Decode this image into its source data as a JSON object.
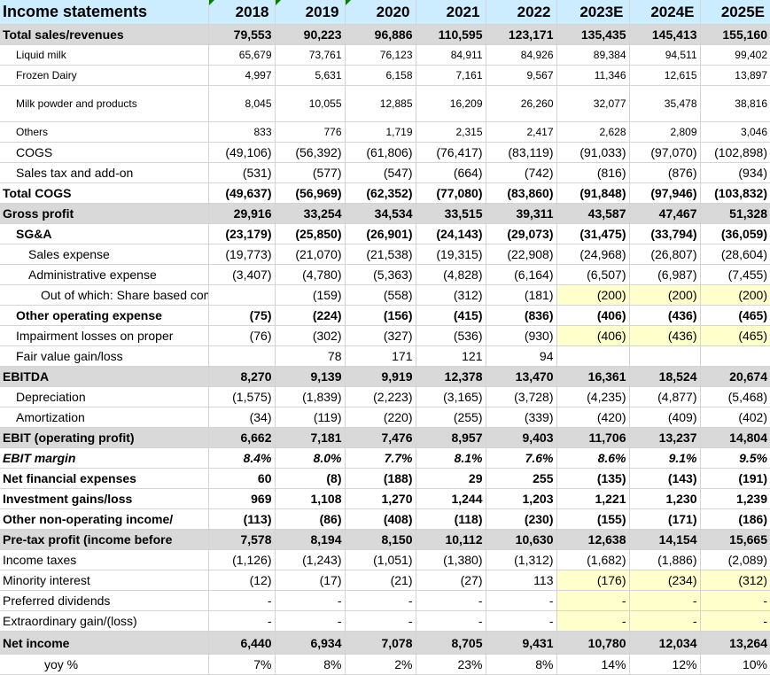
{
  "header": {
    "title": "Income statements",
    "years": [
      "2018",
      "2019",
      "2020",
      "2021",
      "2022",
      "2023E",
      "2024E",
      "2025E"
    ]
  },
  "rows": [
    {
      "label": "Total sales/revenues",
      "values": [
        "79,553",
        "90,223",
        "96,886",
        "110,595",
        "123,171",
        "135,435",
        "145,413",
        "155,160"
      ]
    },
    {
      "label": "Liquid milk",
      "values": [
        "65,679",
        "73,761",
        "76,123",
        "84,911",
        "84,926",
        "89,384",
        "94,511",
        "99,402"
      ]
    },
    {
      "label": "Frozen Dairy",
      "values": [
        "4,997",
        "5,631",
        "6,158",
        "7,161",
        "9,567",
        "11,346",
        "12,615",
        "13,897"
      ]
    },
    {
      "label": "Milk powder and products",
      "values": [
        "8,045",
        "10,055",
        "12,885",
        "16,209",
        "26,260",
        "32,077",
        "35,478",
        "38,816"
      ]
    },
    {
      "label": "Others",
      "values": [
        "833",
        "776",
        "1,719",
        "2,315",
        "2,417",
        "2,628",
        "2,809",
        "3,046"
      ]
    },
    {
      "label": "COGS",
      "values": [
        "(49,106)",
        "(56,392)",
        "(61,806)",
        "(76,417)",
        "(83,119)",
        "(91,033)",
        "(97,070)",
        "(102,898)"
      ]
    },
    {
      "label": "Sales tax and add-on",
      "values": [
        "(531)",
        "(577)",
        "(547)",
        "(664)",
        "(742)",
        "(816)",
        "(876)",
        "(934)"
      ]
    },
    {
      "label": "Total COGS",
      "values": [
        "(49,637)",
        "(56,969)",
        "(62,352)",
        "(77,080)",
        "(83,860)",
        "(91,848)",
        "(97,946)",
        "(103,832)"
      ]
    },
    {
      "label": "Gross profit",
      "values": [
        "29,916",
        "33,254",
        "34,534",
        "33,515",
        "39,311",
        "43,587",
        "47,467",
        "51,328"
      ]
    },
    {
      "label": "SG&A",
      "values": [
        "(23,179)",
        "(25,850)",
        "(26,901)",
        "(24,143)",
        "(29,073)",
        "(31,475)",
        "(33,794)",
        "(36,059)"
      ]
    },
    {
      "label": "Sales expense",
      "values": [
        "(19,773)",
        "(21,070)",
        "(21,538)",
        "(19,315)",
        "(22,908)",
        "(24,968)",
        "(26,807)",
        "(28,604)"
      ]
    },
    {
      "label": "Administrative expense",
      "values": [
        "(3,407)",
        "(4,780)",
        "(5,363)",
        "(4,828)",
        "(6,164)",
        "(6,507)",
        "(6,987)",
        "(7,455)"
      ]
    },
    {
      "label": "Out of which: Share based compen",
      "values": [
        "",
        "(159)",
        "(558)",
        "(312)",
        "(181)",
        "(200)",
        "(200)",
        "(200)"
      ]
    },
    {
      "label": "Other operating expense",
      "values": [
        "(75)",
        "(224)",
        "(156)",
        "(415)",
        "(836)",
        "(406)",
        "(436)",
        "(465)"
      ]
    },
    {
      "label": "Impairment losses on proper",
      "values": [
        "(76)",
        "(302)",
        "(327)",
        "(536)",
        "(930)",
        "(406)",
        "(436)",
        "(465)"
      ]
    },
    {
      "label": "Fair value gain/loss",
      "values": [
        "",
        "78",
        "171",
        "121",
        "94",
        "",
        "",
        ""
      ]
    },
    {
      "label": "EBITDA",
      "values": [
        "8,270",
        "9,139",
        "9,919",
        "12,378",
        "13,470",
        "16,361",
        "18,524",
        "20,674"
      ]
    },
    {
      "label": "Depreciation",
      "values": [
        "(1,575)",
        "(1,839)",
        "(2,223)",
        "(3,165)",
        "(3,728)",
        "(4,235)",
        "(4,877)",
        "(5,468)"
      ]
    },
    {
      "label": "Amortization",
      "values": [
        "(34)",
        "(119)",
        "(220)",
        "(255)",
        "(339)",
        "(420)",
        "(409)",
        "(402)"
      ]
    },
    {
      "label": "EBIT  (operating profit)",
      "values": [
        "6,662",
        "7,181",
        "7,476",
        "8,957",
        "9,403",
        "11,706",
        "13,237",
        "14,804"
      ]
    },
    {
      "label": "EBIT margin",
      "values": [
        "8.4%",
        "8.0%",
        "7.7%",
        "8.1%",
        "7.6%",
        "8.6%",
        "9.1%",
        "9.5%"
      ]
    },
    {
      "label": "Net financial expenses",
      "values": [
        "60",
        "(8)",
        "(188)",
        "29",
        "255",
        "(135)",
        "(143)",
        "(191)"
      ]
    },
    {
      "label": "Investment gains/loss",
      "values": [
        "969",
        "1,108",
        "1,270",
        "1,244",
        "1,203",
        "1,221",
        "1,230",
        "1,239"
      ]
    },
    {
      "label": "Other non-operating income/",
      "values": [
        "(113)",
        "(86)",
        "(408)",
        "(118)",
        "(230)",
        "(155)",
        "(171)",
        "(186)"
      ]
    },
    {
      "label": "Pre-tax profit (income before",
      "values": [
        "7,578",
        "8,194",
        "8,150",
        "10,112",
        "10,630",
        "12,638",
        "14,154",
        "15,665"
      ]
    },
    {
      "label": "Income taxes",
      "values": [
        "(1,126)",
        "(1,243)",
        "(1,051)",
        "(1,380)",
        "(1,312)",
        "(1,682)",
        "(1,886)",
        "(2,089)"
      ]
    },
    {
      "label": "Minority interest",
      "values": [
        "(12)",
        "(17)",
        "(21)",
        "(27)",
        "113",
        "(176)",
        "(234)",
        "(312)"
      ]
    },
    {
      "label": "Preferred dividends",
      "values": [
        "-",
        "-",
        "-",
        "-",
        "-",
        "-",
        "-",
        "-"
      ]
    },
    {
      "label": "Extraordinary gain/(loss)",
      "values": [
        "-",
        "-",
        "-",
        "-",
        "-",
        "-",
        "-",
        "-"
      ]
    },
    {
      "label": "Net income",
      "values": [
        "6,440",
        "6,934",
        "7,078",
        "8,705",
        "9,431",
        "10,780",
        "12,034",
        "13,264"
      ]
    },
    {
      "label": "yoy %",
      "values": [
        "7%",
        "8%",
        "2%",
        "23%",
        "8%",
        "14%",
        "12%",
        "10%"
      ]
    }
  ],
  "colors": {
    "header_bg": "#ccecff",
    "subtotal_bg": "#d9d9d9",
    "input_blue": "#0000ff",
    "forecast_green": "#008000",
    "assumption_red": "#ff0000",
    "assumption_bg": "#ffffcc"
  }
}
